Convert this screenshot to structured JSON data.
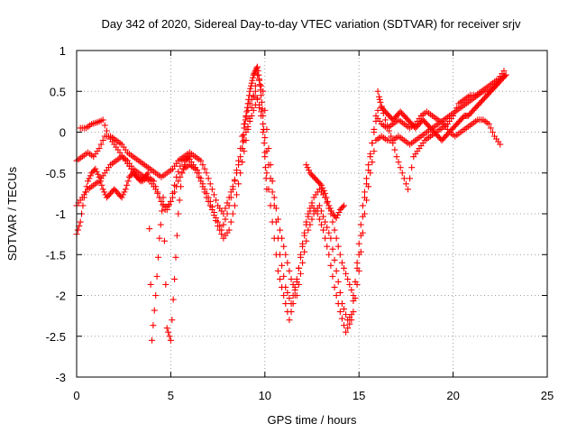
{
  "chart_data": {
    "type": "scatter",
    "title": "Day 342 of 2020, Sidereal Day-to-day VTEC variation (SDTVAR) for receiver srjv",
    "xlabel": "GPS time / hours",
    "ylabel": "SDTVAR / TECUs",
    "xlim": [
      0,
      25
    ],
    "ylim": [
      -3,
      1
    ],
    "xticks": [
      "0",
      "5",
      "10",
      "15",
      "20",
      "25"
    ],
    "yticks": [
      "1",
      "0.5",
      "0",
      "-0.5",
      "-1",
      "-1.5",
      "-2",
      "-2.5",
      "-3"
    ],
    "grid": true,
    "marker": "plus",
    "color": "#ff0000",
    "series": [
      {
        "points": [
          [
            0.0,
            -0.35
          ],
          [
            0.3,
            -0.3
          ],
          [
            0.6,
            -0.25
          ],
          [
            0.9,
            -0.3
          ],
          [
            1.2,
            -0.2
          ],
          [
            1.5,
            -0.05
          ],
          [
            1.8,
            -0.05
          ],
          [
            2.1,
            -0.1
          ],
          [
            2.4,
            -0.15
          ],
          [
            2.7,
            -0.25
          ],
          [
            3.0,
            -0.3
          ],
          [
            3.3,
            -0.35
          ],
          [
            3.6,
            -0.4
          ],
          [
            3.9,
            -0.45
          ],
          [
            4.2,
            -0.5
          ],
          [
            4.5,
            -0.55
          ],
          [
            4.8,
            -0.5
          ],
          [
            5.1,
            -0.45
          ],
          [
            5.4,
            -0.35
          ],
          [
            5.7,
            -0.3
          ],
          [
            6.0,
            -0.25
          ],
          [
            6.3,
            -0.3
          ],
          [
            6.6,
            -0.35
          ],
          [
            6.9,
            -0.5
          ],
          [
            7.2,
            -0.7
          ],
          [
            7.5,
            -0.9
          ],
          [
            7.8,
            -1.0
          ],
          [
            8.1,
            -0.8
          ],
          [
            8.4,
            -0.6
          ],
          [
            8.7,
            -0.3
          ],
          [
            9.0,
            0.0
          ],
          [
            9.3,
            0.2
          ],
          [
            9.6,
            0.4
          ],
          [
            9.9,
            0.1
          ],
          [
            10.2,
            -0.4
          ],
          [
            10.5,
            -0.9
          ],
          [
            10.8,
            -1.5
          ],
          [
            11.1,
            -1.9
          ],
          [
            11.4,
            -2.1
          ],
          [
            11.7,
            -1.8
          ],
          [
            12.0,
            -1.4
          ],
          [
            12.3,
            -1.0
          ],
          [
            12.6,
            -0.8
          ],
          [
            12.9,
            -0.7
          ],
          [
            13.2,
            -0.8
          ],
          [
            13.5,
            -1.0
          ],
          [
            13.8,
            -1.3
          ],
          [
            14.1,
            -1.6
          ],
          [
            14.4,
            -1.8
          ],
          [
            14.7,
            -2.0
          ],
          [
            15.0,
            -1.5
          ],
          [
            15.3,
            -0.8
          ],
          [
            15.6,
            -0.3
          ],
          [
            15.9,
            0.2
          ],
          [
            16.2,
            0.1
          ],
          [
            16.5,
            0.05
          ],
          [
            16.8,
            0.1
          ],
          [
            17.1,
            0.15
          ],
          [
            17.4,
            0.1
          ],
          [
            17.7,
            0.05
          ],
          [
            18.0,
            0.1
          ],
          [
            18.3,
            0.2
          ],
          [
            18.6,
            0.25
          ],
          [
            18.9,
            0.2
          ],
          [
            19.2,
            0.15
          ],
          [
            19.5,
            0.1
          ],
          [
            19.8,
            0.0
          ],
          [
            20.1,
            -0.05
          ],
          [
            20.4,
            0.0
          ],
          [
            20.7,
            0.05
          ],
          [
            21.0,
            0.1
          ],
          [
            21.3,
            0.15
          ],
          [
            21.6,
            0.15
          ],
          [
            21.9,
            0.1
          ],
          [
            22.2,
            -0.05
          ],
          [
            22.5,
            -0.15
          ]
        ]
      },
      {
        "points": [
          [
            0.0,
            -0.9
          ],
          [
            0.3,
            -0.8
          ],
          [
            0.6,
            -0.7
          ],
          [
            0.9,
            -0.65
          ],
          [
            1.2,
            -0.6
          ],
          [
            1.5,
            -0.5
          ],
          [
            1.8,
            -0.4
          ],
          [
            2.1,
            -0.35
          ],
          [
            2.4,
            -0.3
          ],
          [
            2.7,
            -0.35
          ],
          [
            3.0,
            -0.45
          ],
          [
            3.3,
            -0.5
          ],
          [
            3.6,
            -0.55
          ],
          [
            3.9,
            -0.6
          ],
          [
            4.2,
            -0.7
          ],
          [
            4.5,
            -0.85
          ],
          [
            4.8,
            -0.95
          ],
          [
            5.1,
            -0.8
          ],
          [
            5.4,
            -0.6
          ],
          [
            5.7,
            -0.45
          ],
          [
            6.0,
            -0.4
          ],
          [
            6.3,
            -0.45
          ],
          [
            6.6,
            -0.6
          ],
          [
            6.9,
            -0.8
          ],
          [
            7.2,
            -0.95
          ],
          [
            7.5,
            -1.15
          ],
          [
            7.8,
            -1.3
          ],
          [
            8.1,
            -1.2
          ],
          [
            8.4,
            -0.9
          ],
          [
            8.7,
            -0.5
          ],
          [
            9.0,
            -0.1
          ],
          [
            9.3,
            0.3
          ],
          [
            9.6,
            0.7
          ],
          [
            9.9,
            0.5
          ],
          [
            10.2,
            -0.2
          ],
          [
            10.5,
            -0.8
          ],
          [
            10.8,
            -1.2
          ],
          [
            11.1,
            -1.5
          ],
          [
            11.4,
            -1.8
          ],
          [
            11.7,
            -2.0
          ],
          [
            12.0,
            -1.6
          ],
          [
            12.3,
            -1.2
          ],
          [
            12.6,
            -1.0
          ],
          [
            12.9,
            -0.9
          ],
          [
            13.2,
            -1.1
          ],
          [
            13.5,
            -1.3
          ],
          [
            13.8,
            -1.7
          ],
          [
            14.1,
            -2.1
          ],
          [
            14.4,
            -2.3
          ],
          [
            14.7,
            -2.2
          ],
          [
            15.0,
            -1.7
          ],
          [
            15.3,
            -1.0
          ],
          [
            15.6,
            -0.5
          ],
          [
            15.9,
            -0.1
          ],
          [
            16.2,
            -0.05
          ],
          [
            16.5,
            -0.1
          ],
          [
            16.8,
            -0.1
          ],
          [
            17.1,
            -0.05
          ],
          [
            17.4,
            -0.1
          ],
          [
            17.7,
            -0.15
          ],
          [
            18.0,
            -0.1
          ],
          [
            18.3,
            -0.05
          ],
          [
            18.6,
            0.0
          ],
          [
            18.9,
            0.05
          ],
          [
            19.2,
            0.1
          ],
          [
            19.5,
            0.15
          ],
          [
            19.8,
            0.2
          ],
          [
            20.1,
            0.25
          ],
          [
            20.4,
            0.3
          ],
          [
            20.7,
            0.35
          ],
          [
            21.0,
            0.4
          ],
          [
            21.3,
            0.45
          ],
          [
            21.6,
            0.5
          ],
          [
            21.9,
            0.5
          ],
          [
            22.2,
            0.55
          ],
          [
            22.5,
            0.65
          ],
          [
            22.8,
            0.7
          ]
        ]
      },
      {
        "points": [
          [
            0.2,
            0.05
          ],
          [
            0.5,
            0.05
          ],
          [
            0.8,
            0.1
          ],
          [
            1.1,
            0.12
          ],
          [
            1.4,
            0.15
          ],
          [
            1.7,
            -0.05
          ],
          [
            2.0,
            -0.15
          ],
          [
            2.3,
            -0.25
          ],
          [
            2.6,
            -0.35
          ],
          [
            2.9,
            -0.45
          ],
          [
            3.2,
            -0.55
          ],
          [
            3.5,
            -0.6
          ],
          [
            3.8,
            -0.55
          ],
          [
            4.1,
            -0.6
          ],
          [
            4.4,
            -0.8
          ],
          [
            4.7,
            -0.95
          ],
          [
            5.0,
            -0.85
          ],
          [
            5.3,
            -0.55
          ],
          [
            5.6,
            -0.35
          ],
          [
            5.9,
            -0.3
          ],
          [
            6.2,
            -0.4
          ],
          [
            6.5,
            -0.5
          ],
          [
            6.8,
            -0.7
          ],
          [
            7.1,
            -0.85
          ],
          [
            7.4,
            -1.05
          ],
          [
            7.7,
            -1.2
          ],
          [
            8.0,
            -1.0
          ],
          [
            8.3,
            -0.7
          ],
          [
            8.6,
            -0.35
          ],
          [
            8.9,
            0.1
          ],
          [
            9.2,
            0.35
          ],
          [
            9.5,
            0.5
          ],
          [
            9.8,
            0.25
          ],
          [
            10.1,
            -0.5
          ],
          [
            10.4,
            -1.1
          ],
          [
            10.7,
            -1.7
          ],
          [
            11.0,
            -2.0
          ],
          [
            11.3,
            -2.3
          ],
          [
            11.6,
            -2.0
          ],
          [
            11.9,
            -1.5
          ],
          [
            12.2,
            -1.1
          ],
          [
            12.5,
            -0.9
          ],
          [
            12.8,
            -1.0
          ],
          [
            13.1,
            -1.2
          ],
          [
            13.4,
            -1.5
          ],
          [
            13.7,
            -1.9
          ],
          [
            14.0,
            -2.2
          ],
          [
            14.3,
            -2.45
          ],
          [
            14.6,
            -2.3
          ],
          [
            14.9,
            -1.6
          ],
          [
            15.2,
            -0.9
          ],
          [
            15.5,
            -0.4
          ],
          [
            15.8,
            0.0
          ],
          [
            16.1,
            0.4
          ],
          [
            16.4,
            0.15
          ],
          [
            16.7,
            -0.05
          ],
          [
            17.0,
            -0.3
          ],
          [
            17.3,
            -0.5
          ],
          [
            17.6,
            -0.7
          ],
          [
            17.9,
            -0.3
          ],
          [
            18.2,
            -0.2
          ],
          [
            18.5,
            -0.1
          ],
          [
            18.8,
            -0.05
          ],
          [
            19.1,
            0.0
          ],
          [
            19.4,
            0.05
          ],
          [
            19.7,
            0.1
          ],
          [
            20.0,
            0.2
          ],
          [
            20.3,
            0.35
          ],
          [
            20.6,
            0.4
          ],
          [
            20.9,
            0.45
          ],
          [
            21.2,
            0.45
          ],
          [
            21.5,
            0.5
          ],
          [
            21.8,
            0.55
          ],
          [
            22.1,
            0.6
          ],
          [
            22.4,
            0.65
          ],
          [
            22.7,
            0.75
          ]
        ]
      },
      {
        "points": [
          [
            0.0,
            -1.25
          ],
          [
            0.2,
            -1.1
          ],
          [
            0.4,
            -0.8
          ],
          [
            0.6,
            -0.6
          ],
          [
            0.8,
            -0.5
          ],
          [
            1.0,
            -0.45
          ],
          [
            1.2,
            -0.55
          ],
          [
            1.4,
            -0.7
          ],
          [
            1.6,
            -0.8
          ],
          [
            1.8,
            -0.75
          ],
          [
            2.0,
            -0.7
          ],
          [
            2.2,
            -0.75
          ],
          [
            2.4,
            -0.8
          ],
          [
            2.6,
            -0.7
          ],
          [
            2.8,
            -0.55
          ],
          [
            3.0,
            -0.5
          ],
          [
            3.2,
            -0.55
          ],
          [
            3.4,
            -0.6
          ],
          [
            3.6,
            -0.55
          ],
          [
            3.8,
            -0.5
          ],
          [
            4.0,
            -2.55
          ],
          [
            4.2,
            -2.0
          ],
          [
            4.4,
            -1.3
          ],
          [
            4.6,
            -0.8
          ],
          [
            4.8,
            -2.4
          ],
          [
            5.0,
            -2.55
          ],
          [
            5.2,
            -1.8
          ],
          [
            5.4,
            -1.0
          ],
          [
            5.6,
            -0.5
          ],
          [
            5.8,
            -0.35
          ],
          [
            6.0,
            -0.3
          ]
        ]
      },
      {
        "points": [
          [
            8.8,
            -0.2
          ],
          [
            8.9,
            0.05
          ],
          [
            9.0,
            0.2
          ],
          [
            9.1,
            0.35
          ],
          [
            9.2,
            0.5
          ],
          [
            9.3,
            0.6
          ],
          [
            9.4,
            0.7
          ],
          [
            9.5,
            0.75
          ],
          [
            9.6,
            0.8
          ],
          [
            9.7,
            0.65
          ],
          [
            9.8,
            0.45
          ],
          [
            9.9,
            0.2
          ],
          [
            10.0,
            -0.3
          ],
          [
            10.1,
            -0.7
          ]
        ]
      },
      {
        "points": [
          [
            12.2,
            -0.4
          ],
          [
            12.4,
            -0.5
          ],
          [
            12.6,
            -0.55
          ],
          [
            12.8,
            -0.6
          ],
          [
            13.0,
            -0.65
          ],
          [
            13.2,
            -0.75
          ],
          [
            13.4,
            -0.9
          ],
          [
            13.6,
            -1.0
          ],
          [
            13.8,
            -1.05
          ],
          [
            14.0,
            -0.95
          ],
          [
            14.2,
            -0.9
          ]
        ]
      },
      {
        "points": [
          [
            16.0,
            0.5
          ],
          [
            16.2,
            0.3
          ],
          [
            16.4,
            0.25
          ],
          [
            16.6,
            0.2
          ],
          [
            16.8,
            0.15
          ],
          [
            17.0,
            0.2
          ],
          [
            17.2,
            0.25
          ],
          [
            17.4,
            0.2
          ],
          [
            17.6,
            0.15
          ],
          [
            17.8,
            0.1
          ],
          [
            18.0,
            0.05
          ],
          [
            18.2,
            0.1
          ],
          [
            18.4,
            0.15
          ],
          [
            18.6,
            0.1
          ],
          [
            18.8,
            0.05
          ],
          [
            19.0,
            0.0
          ],
          [
            19.2,
            -0.05
          ],
          [
            19.4,
            -0.1
          ],
          [
            19.6,
            -0.05
          ],
          [
            19.8,
            0.0
          ],
          [
            20.0,
            0.05
          ],
          [
            20.2,
            0.1
          ],
          [
            20.4,
            0.15
          ],
          [
            20.6,
            0.2
          ],
          [
            20.8,
            0.2
          ],
          [
            21.0,
            0.25
          ],
          [
            21.2,
            0.3
          ],
          [
            21.4,
            0.35
          ],
          [
            21.6,
            0.4
          ],
          [
            21.8,
            0.45
          ],
          [
            22.0,
            0.5
          ],
          [
            22.2,
            0.55
          ],
          [
            22.4,
            0.6
          ],
          [
            22.6,
            0.65
          ],
          [
            22.8,
            0.7
          ]
        ]
      }
    ]
  }
}
